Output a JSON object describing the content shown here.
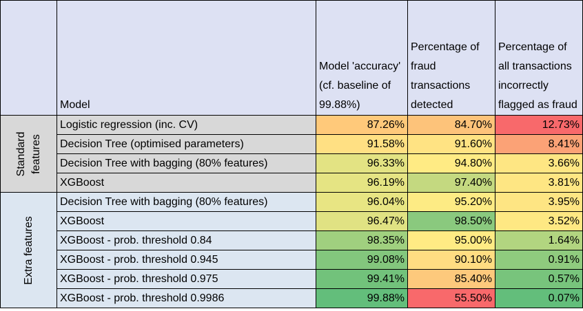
{
  "headers": {
    "group": "",
    "model": "Model",
    "accuracy": "Model 'accuracy' (cf. baseline of 99.88%)",
    "detected": "Percentage of fraud transactions detected",
    "flagged": "Percentage of all transactions incorrectly flagged as fraud"
  },
  "groups": [
    {
      "label": "Standard features",
      "type": "std",
      "rows": [
        {
          "model": "Logistic regression (inc. CV)",
          "accuracy": "87.26%",
          "detected": "84.70%",
          "flagged": "12.73%",
          "colors": [
            "#ffc97a",
            "#fdc37a",
            "#f8696b"
          ]
        },
        {
          "model": "Decision Tree (optimised parameters)",
          "accuracy": "91.58%",
          "detected": "91.60%",
          "flagged": "8.41%",
          "colors": [
            "#ffe083",
            "#ffe383",
            "#fba276"
          ]
        },
        {
          "model": "Decision Tree with bagging (80% features)",
          "accuracy": "96.33%",
          "detected": "94.80%",
          "flagged": "3.66%",
          "colors": [
            "#e3e383",
            "#ffeb84",
            "#fee683"
          ]
        },
        {
          "model": "XGBoost",
          "accuracy": "96.19%",
          "detected": "97.40%",
          "flagged": "3.81%",
          "colors": [
            "#e5e483",
            "#c4d980",
            "#fee683"
          ]
        }
      ]
    },
    {
      "label": "Extra features",
      "type": "ext",
      "rows": [
        {
          "model": "Decision Tree with bagging (80% features)",
          "accuracy": "96.04%",
          "detected": "95.20%",
          "flagged": "3.95%",
          "colors": [
            "#e8e583",
            "#fdeb84",
            "#fee583"
          ]
        },
        {
          "model": "XGBoost",
          "accuracy": "96.47%",
          "detected": "98.50%",
          "flagged": "3.52%",
          "colors": [
            "#e0e283",
            "#8ac97e",
            "#fee883"
          ]
        },
        {
          "model": "XGBoost - prob. threshold 0.84",
          "accuracy": "98.35%",
          "detected": "95.00%",
          "flagged": "1.64%",
          "colors": [
            "#a0d07f",
            "#ffeb84",
            "#b2d580"
          ]
        },
        {
          "model": "XGBoost - prob. threshold 0.945",
          "accuracy": "99.08%",
          "detected": "90.10%",
          "flagged": "0.91%",
          "colors": [
            "#83c77d",
            "#ffdd82",
            "#8fcb7e"
          ]
        },
        {
          "model": "XGBoost - prob. threshold 0.975",
          "accuracy": "99.41%",
          "detected": "85.40%",
          "flagged": "0.57%",
          "colors": [
            "#72c27b",
            "#fdc97c",
            "#78c47c"
          ]
        },
        {
          "model": "XGBoost - prob. threshold 0.9986",
          "accuracy": "99.88%",
          "detected": "55.50%",
          "flagged": "0.07%",
          "colors": [
            "#63be7b",
            "#f8696b",
            "#63be7b"
          ]
        }
      ]
    }
  ]
}
